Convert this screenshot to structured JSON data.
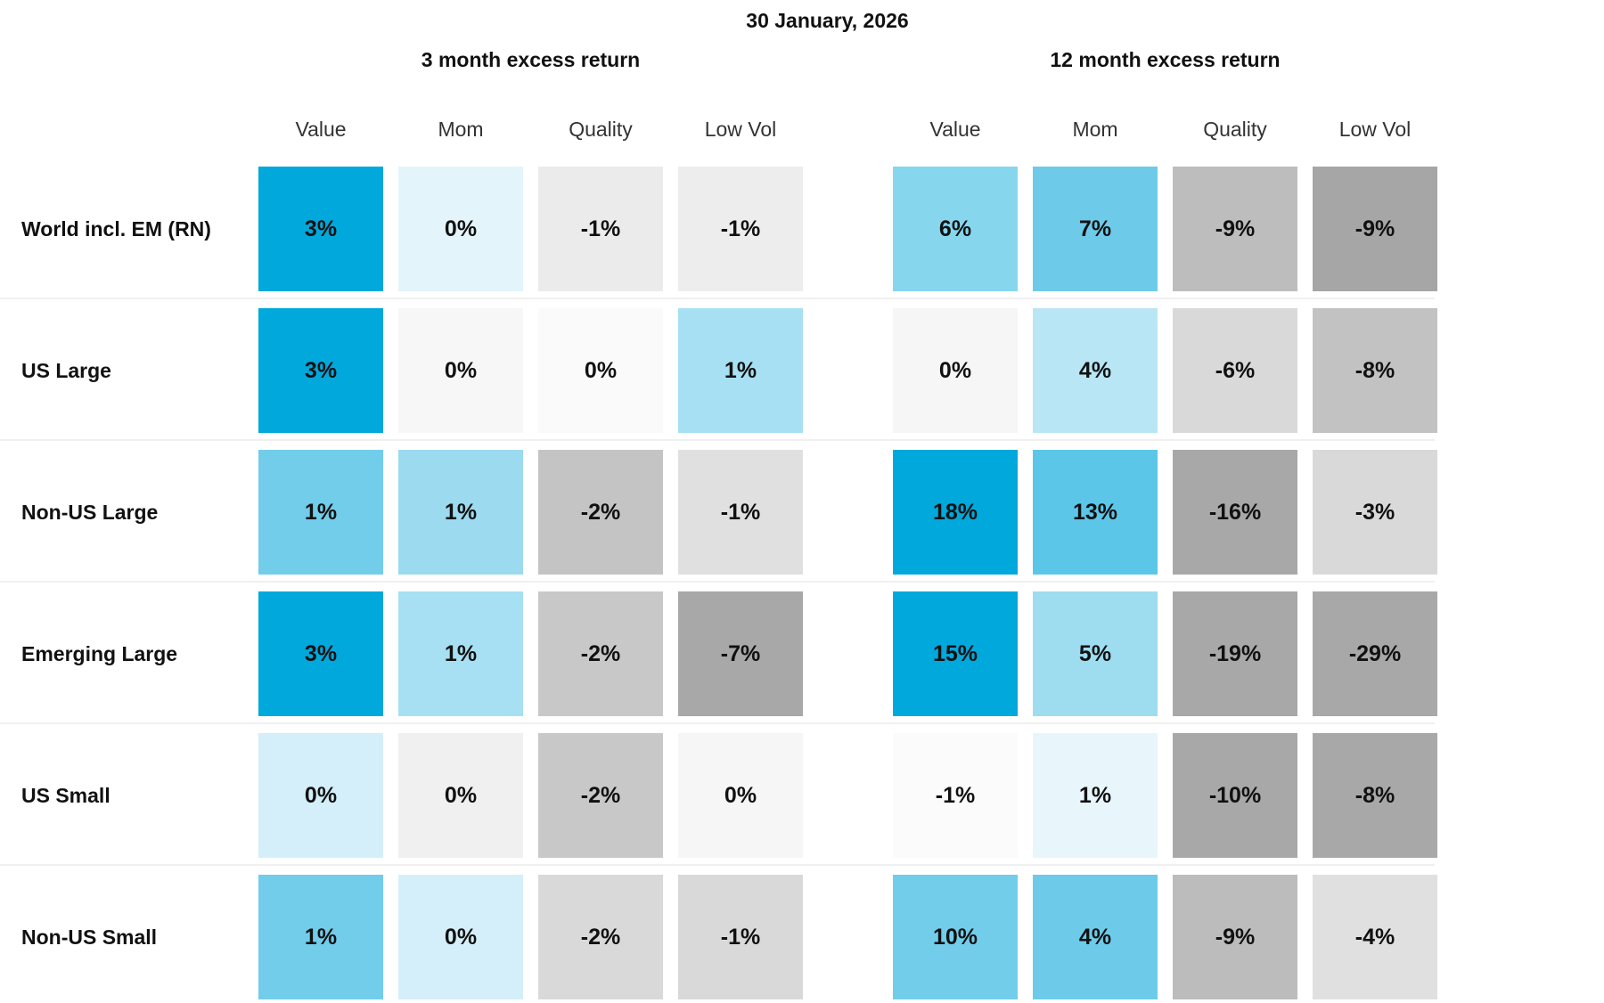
{
  "chart_data": {
    "type": "heatmap",
    "title": "30 January, 2026",
    "rows": [
      "World incl. EM (RN)",
      "US Large",
      "Non-US Large",
      "Emerging Large",
      "US Small",
      "Non-US Small"
    ],
    "groups": [
      {
        "title": "3 month excess return",
        "columns": [
          "Value",
          "Mom",
          "Quality",
          "Low Vol"
        ],
        "values": [
          [
            "3%",
            "0%",
            "-1%",
            "-1%"
          ],
          [
            "3%",
            "0%",
            "0%",
            "1%"
          ],
          [
            "1%",
            "1%",
            "-2%",
            "-1%"
          ],
          [
            "3%",
            "1%",
            "-2%",
            "-7%"
          ],
          [
            "0%",
            "0%",
            "-2%",
            "0%"
          ],
          [
            "1%",
            "0%",
            "-2%",
            "-1%"
          ]
        ],
        "colors": [
          [
            "#00a8dc",
            "#e4f4fb",
            "#ebebeb",
            "#ededed"
          ],
          [
            "#00a8dc",
            "#f7f7f7",
            "#fafafa",
            "#a6e0f2"
          ],
          [
            "#71cdea",
            "#9cdaf0",
            "#c4c4c4",
            "#e0e0e0"
          ],
          [
            "#00a8dc",
            "#a6e0f2",
            "#c8c8c8",
            "#a8a8a8"
          ],
          [
            "#d4eff9",
            "#f0f0f0",
            "#c8c8c8",
            "#f6f6f6"
          ],
          [
            "#71cdea",
            "#d4eff9",
            "#d9d9d9",
            "#d9d9d9"
          ]
        ]
      },
      {
        "title": "12 month excess return",
        "columns": [
          "Value",
          "Mom",
          "Quality",
          "Low Vol"
        ],
        "values": [
          [
            "6%",
            "7%",
            "-9%",
            "-9%"
          ],
          [
            "0%",
            "4%",
            "-6%",
            "-8%"
          ],
          [
            "18%",
            "13%",
            "-16%",
            "-3%"
          ],
          [
            "15%",
            "5%",
            "-19%",
            "-29%"
          ],
          [
            "-1%",
            "1%",
            "-10%",
            "-8%"
          ],
          [
            "10%",
            "4%",
            "-9%",
            "-4%"
          ]
        ],
        "colors": [
          [
            "#86d6ee",
            "#6dcbe9",
            "#bdbdbd",
            "#a6a6a6"
          ],
          [
            "#f6f6f6",
            "#b8e6f5",
            "#d9d9d9",
            "#c2c2c2"
          ],
          [
            "#00a8dc",
            "#5cc6e8",
            "#a8a8a8",
            "#d9d9d9"
          ],
          [
            "#00a8dc",
            "#9edcf0",
            "#a8a8a8",
            "#a8a8a8"
          ],
          [
            "#fbfbfb",
            "#e8f6fc",
            "#a8a8a8",
            "#a8a8a8"
          ],
          [
            "#71cdea",
            "#6dcbe9",
            "#bcbcbc",
            "#e0e0e0"
          ]
        ]
      }
    ]
  }
}
